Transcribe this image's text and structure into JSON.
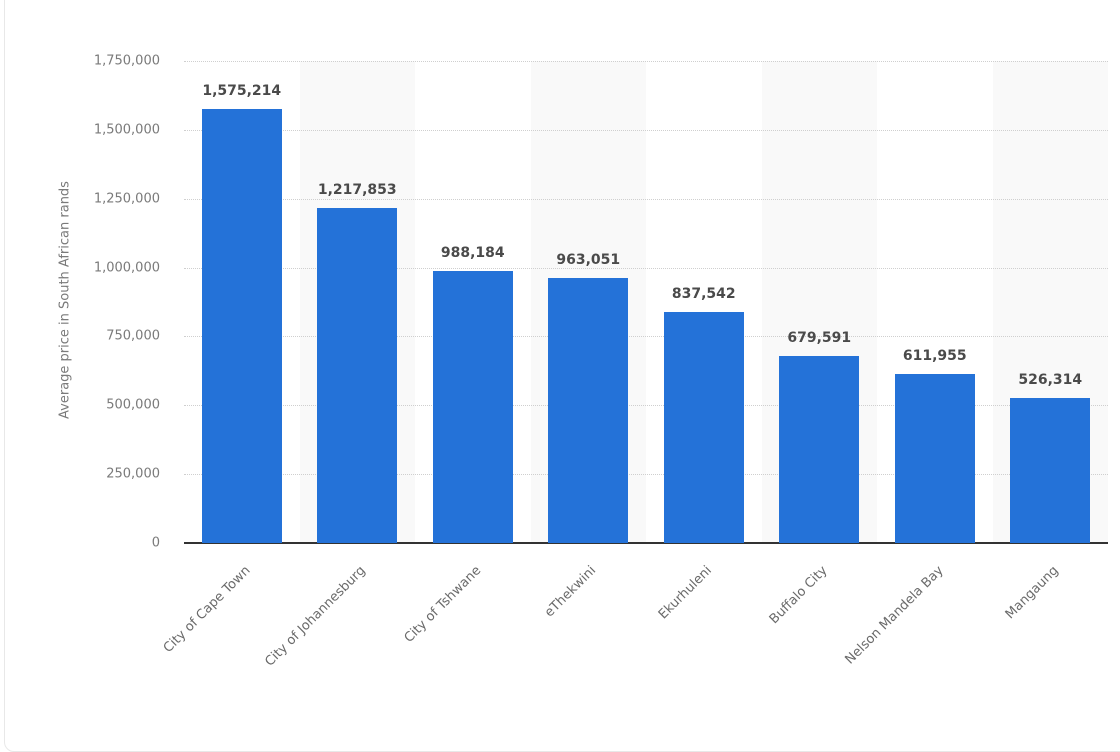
{
  "chart_data": {
    "type": "bar",
    "title": "",
    "xlabel": "",
    "ylabel": "Average price in South African rands",
    "ylim": [
      0,
      1750000
    ],
    "yticks": [
      "0",
      "250,000",
      "500,000",
      "750,000",
      "1,000,000",
      "1,250,000",
      "1,500,000",
      "1,750,000"
    ],
    "grid": true,
    "legend": null,
    "categories": [
      "City of Cape Town",
      "City of Johannesburg",
      "City of Tshwane",
      "eThekwini",
      "Ekurhuleni",
      "Buffalo City",
      "Nelson Mandela Bay",
      "Mangaung"
    ],
    "values": [
      1575214,
      1217853,
      988184,
      963051,
      837542,
      679591,
      611955,
      526314
    ],
    "value_labels": [
      "1,575,214",
      "1,217,853",
      "988,184",
      "963,051",
      "837,542",
      "679,591",
      "611,955",
      "526,314"
    ],
    "bar_color": "#2472d8"
  }
}
